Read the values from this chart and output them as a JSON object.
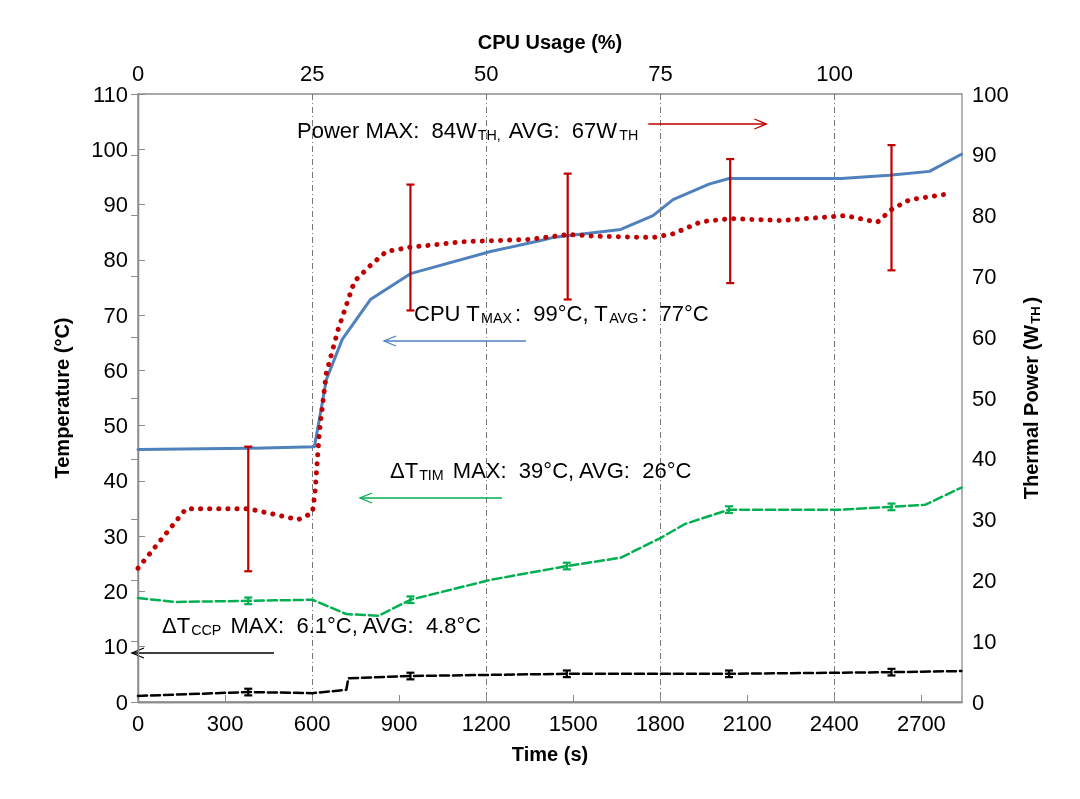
{
  "chart_data": {
    "type": "line",
    "xlabel": "Time (s)",
    "ylabel": "Temperature (°C)",
    "y2label": "Thermal Power (W$_{TH}$)",
    "x2label": "CPU Usage (%)",
    "xlim": [
      0,
      2840
    ],
    "xticks": [
      0,
      300,
      600,
      900,
      1200,
      1500,
      1800,
      2100,
      2400,
      2700
    ],
    "x2lim": [
      0,
      118.3
    ],
    "x2ticks": [
      0,
      25,
      50,
      75,
      100
    ],
    "ylim": [
      0,
      110
    ],
    "yticks": [
      0,
      10,
      20,
      30,
      40,
      50,
      60,
      70,
      80,
      90,
      100,
      110
    ],
    "y2lim": [
      0,
      100
    ],
    "y2ticks": [
      0,
      10,
      20,
      30,
      40,
      50,
      60,
      70,
      80,
      90,
      100
    ],
    "grid": "x",
    "series": [
      {
        "color": "#4f81bd",
        "line_style": "solid",
        "x": [
          0,
          380,
          608,
          625,
          649,
          704,
          801,
          939,
          1215,
          1388,
          1436,
          1664,
          1775,
          1844,
          1968,
          2037,
          2424,
          2590,
          2728,
          2838
        ],
        "values": [
          45.7,
          45.9,
          46.2,
          51.1,
          58.3,
          65.6,
          72.8,
          77.5,
          81.5,
          83.5,
          84.1,
          85.5,
          88.0,
          90.9,
          93.7,
          94.7,
          94.7,
          95.3,
          96.0,
          99.1
        ]
      },
      {
        "color": "#c00000",
        "line_style": "dotted",
        "axis": "y2",
        "x": [
          0,
          166,
          248,
          380,
          552,
          601,
          610,
          625,
          649,
          690,
          746,
          801,
          856,
          939,
          1119,
          1354,
          1481,
          1581,
          1775,
          1844,
          1941,
          2041,
          2217,
          2438,
          2548,
          2597,
          2659,
          2797
        ],
        "values": [
          22.0,
          31.8,
          31.8,
          31.8,
          30.0,
          31.1,
          34.4,
          44.3,
          54.1,
          61.3,
          69.2,
          71.8,
          74.1,
          74.8,
          75.7,
          76.1,
          76.9,
          76.6,
          76.4,
          77.0,
          79.0,
          79.5,
          79.2,
          80.0,
          78.9,
          81.0,
          82.6,
          83.6
        ],
        "errors": [
          null,
          null,
          null,
          [
            21.5,
            42.0
          ],
          null,
          null,
          null,
          null,
          null,
          null,
          null,
          null,
          null,
          [
            64.4,
            85.1
          ],
          null,
          null,
          [
            66.2,
            86.9
          ],
          null,
          null,
          null,
          null,
          [
            68.9,
            89.3
          ],
          null,
          null,
          null,
          [
            71.0,
            91.6
          ],
          null,
          null
        ]
      },
      {
        "color": "#00b050",
        "line_style": "dashed",
        "x": [
          0,
          131,
          380,
          601,
          718,
          829,
          939,
          1215,
          1478,
          1664,
          1802,
          1885,
          2037,
          2424,
          2597,
          2714,
          2838
        ],
        "values": [
          18.8,
          18.1,
          18.3,
          18.5,
          15.9,
          15.6,
          18.5,
          22.1,
          24.6,
          26.1,
          29.7,
          32.2,
          34.8,
          34.8,
          35.3,
          35.7,
          38.8
        ],
        "errors": [
          null,
          null,
          0.6,
          null,
          null,
          null,
          0.6,
          null,
          0.6,
          null,
          null,
          null,
          0.6,
          null,
          0.6,
          null,
          null
        ]
      },
      {
        "color": "#000000",
        "line_style": "dashed",
        "x": [
          0,
          380,
          601,
          718,
          725,
          939,
          1478,
          2037,
          2597,
          2838
        ],
        "values": [
          1.1,
          1.8,
          1.6,
          2.2,
          4.3,
          4.7,
          5.1,
          5.1,
          5.4,
          5.6
        ],
        "errors": [
          null,
          0.6,
          null,
          null,
          null,
          0.6,
          0.6,
          0.6,
          0.6,
          null
        ]
      }
    ],
    "annotations": [
      "CPU T$_{MAX}$:  99°C, T$_{AVG}$:  77°C",
      "Power MAX:  84W$_{TH,}$ AVG:  67W$_{TH}$",
      "ΔT$_{TIM}$ MAX:  39°C, AVG:  26°C",
      "ΔT$_{CCP}$ MAX:  6.1°C, AVG:  4.8°C"
    ]
  }
}
